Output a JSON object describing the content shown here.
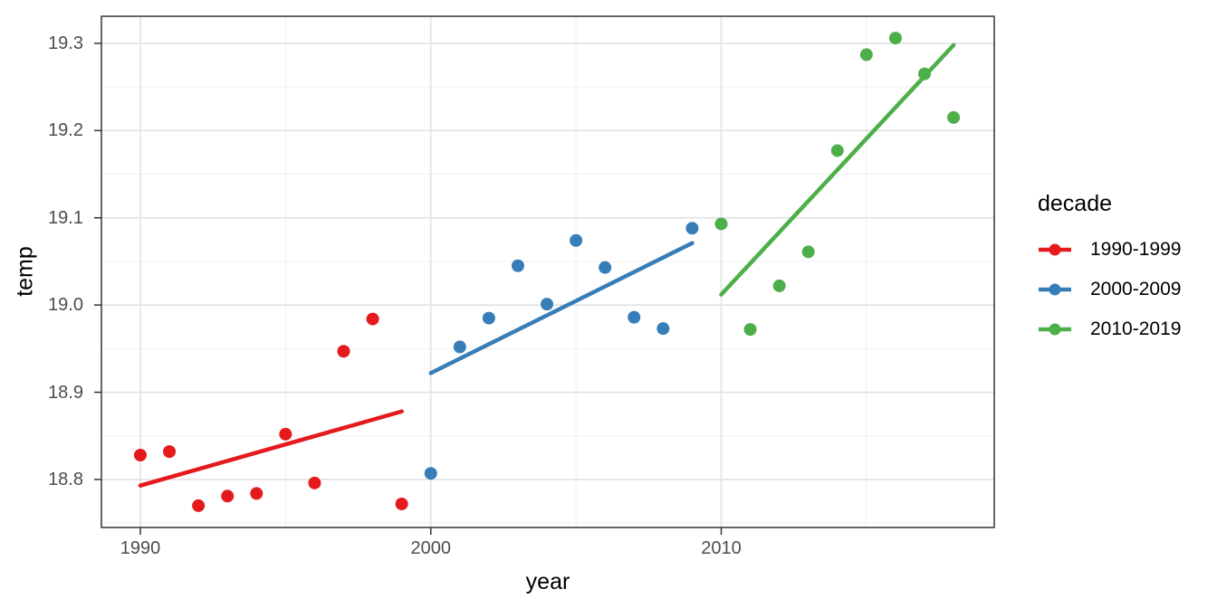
{
  "chart_data": {
    "type": "scatter",
    "title": "",
    "xlabel": "year",
    "ylabel": "temp",
    "xlim": [
      1988.66,
      2019.4
    ],
    "ylim": [
      18.745,
      19.331
    ],
    "grid": {
      "major": true,
      "minor": true
    },
    "legend": {
      "title": "decade",
      "position": "right"
    },
    "x_ticks": [
      {
        "value": 1990,
        "label": "1990"
      },
      {
        "value": 2000,
        "label": "2000"
      },
      {
        "value": 2010,
        "label": "2010"
      }
    ],
    "y_ticks": [
      {
        "value": 18.8,
        "label": "18.8"
      },
      {
        "value": 18.9,
        "label": "18.9"
      },
      {
        "value": 19.0,
        "label": "19.0"
      },
      {
        "value": 19.1,
        "label": "19.1"
      },
      {
        "value": 19.2,
        "label": "19.2"
      },
      {
        "value": 19.3,
        "label": "19.3"
      }
    ],
    "series": [
      {
        "name": "1990-1999",
        "color": "#E41A1C",
        "points": [
          [
            1990,
            18.828
          ],
          [
            1991,
            18.832
          ],
          [
            1992,
            18.77
          ],
          [
            1993,
            18.781
          ],
          [
            1994,
            18.784
          ],
          [
            1995,
            18.852
          ],
          [
            1996,
            18.796
          ],
          [
            1997,
            18.947
          ],
          [
            1998,
            18.984
          ],
          [
            1999,
            18.772
          ]
        ],
        "trend": [
          [
            1990,
            18.793
          ],
          [
            1999,
            18.878
          ]
        ]
      },
      {
        "name": "2000-2009",
        "color": "#377EB8",
        "points": [
          [
            2000,
            18.807
          ],
          [
            2001,
            18.952
          ],
          [
            2002,
            18.985
          ],
          [
            2003,
            19.045
          ],
          [
            2004,
            19.001
          ],
          [
            2005,
            19.074
          ],
          [
            2006,
            19.043
          ],
          [
            2007,
            18.986
          ],
          [
            2008,
            18.973
          ],
          [
            2009,
            19.088
          ]
        ],
        "trend": [
          [
            2000,
            18.922
          ],
          [
            2009,
            19.071
          ]
        ]
      },
      {
        "name": "2010-2019",
        "color": "#4DAF4A",
        "points": [
          [
            2010,
            19.093
          ],
          [
            2011,
            18.972
          ],
          [
            2012,
            19.022
          ],
          [
            2013,
            19.061
          ],
          [
            2014,
            19.177
          ],
          [
            2015,
            19.287
          ],
          [
            2016,
            19.306
          ],
          [
            2017,
            19.265
          ],
          [
            2018,
            19.215
          ]
        ],
        "trend": [
          [
            2010,
            19.012
          ],
          [
            2018,
            19.298
          ]
        ]
      }
    ],
    "colors": {
      "panel_background": "#FFFFFF",
      "grid_major": "#E2E2E2",
      "grid_minor": "#F0F0F0",
      "panel_border": "#333333",
      "tick": "#333333",
      "tick_label": "#4D4D4D",
      "text": "#000000"
    }
  }
}
